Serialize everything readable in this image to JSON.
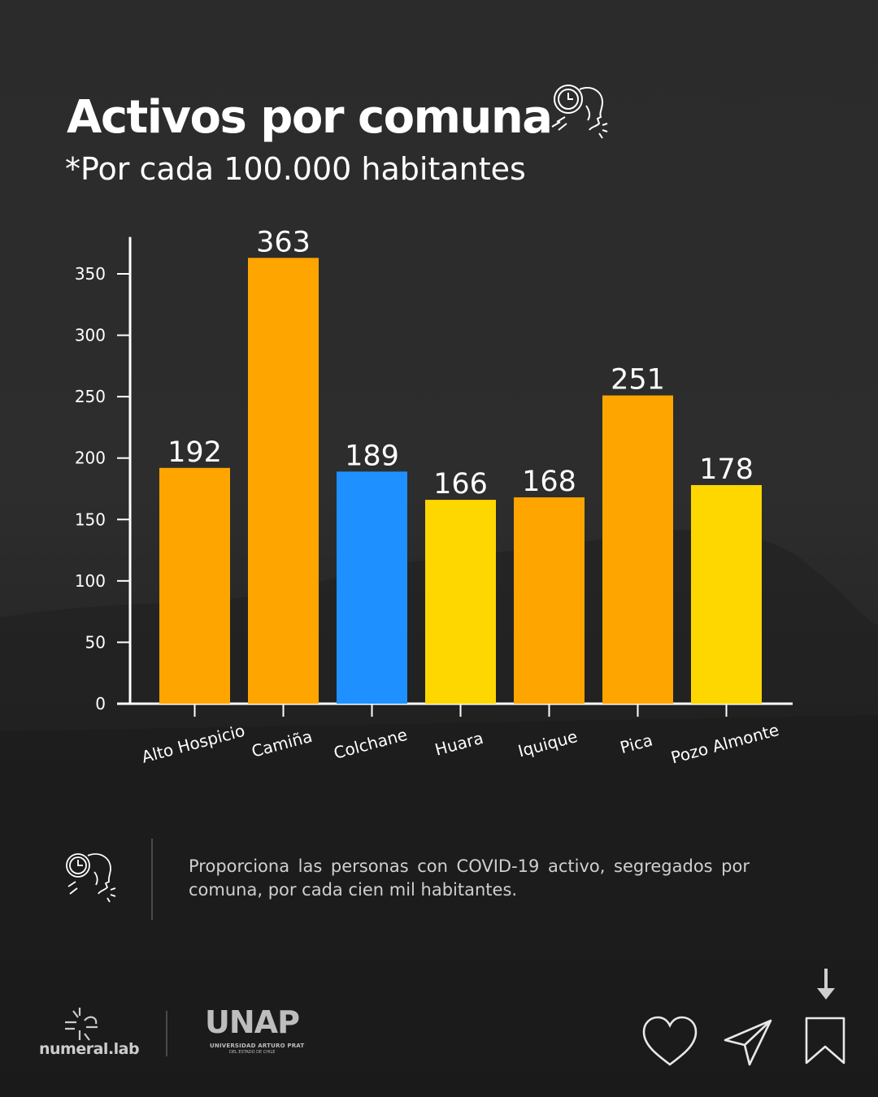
{
  "header": {
    "title": "Activos por comuna",
    "subtitle_prefix": "*Por cada ",
    "subtitle_bold": "100.000",
    "subtitle_suffix": " habitantes",
    "title_icon": "virus-cough-icon"
  },
  "chart_data": {
    "type": "bar",
    "title": "",
    "xlabel": "",
    "ylabel": "",
    "categories": [
      "Alto Hospicio",
      "Camiña",
      "Colchane",
      "Huara",
      "Iquique",
      "Pica",
      "Pozo Almonte"
    ],
    "values": [
      192,
      363,
      189,
      166,
      168,
      251,
      178
    ],
    "bar_colors": [
      "#FFA500",
      "#FFA500",
      "#1E90FF",
      "#FFD700",
      "#FFA500",
      "#FFA500",
      "#FFD700"
    ],
    "ylim": [
      0,
      380
    ],
    "yticks": [
      0,
      50,
      100,
      150,
      200,
      250,
      300,
      350
    ],
    "grid": false,
    "data_labels": true,
    "xtick_rotation": 15
  },
  "description": {
    "text": "Proporciona las personas con COVID-19 activo, segregados por comuna, por cada cien mil habitantes.",
    "icon": "virus-cough-icon"
  },
  "footer": {
    "brand_name": "numeral.lab",
    "brand_icon": "numeral-lab-logo-icon",
    "partner_name": "UNAP",
    "partner_subtitle": "UNIVERSIDAD ARTURO PRAT",
    "partner_subtitle2": "DEL ESTADO DE CHILE"
  },
  "actions": {
    "icons": [
      "heart-icon",
      "send-icon",
      "bookmark-icon",
      "arrow-down-icon"
    ]
  },
  "colors": {
    "orange": "#FFA500",
    "blue": "#1E90FF",
    "yellow": "#FFD700",
    "background": "#2b2b2b",
    "axis": "#ffffff"
  }
}
